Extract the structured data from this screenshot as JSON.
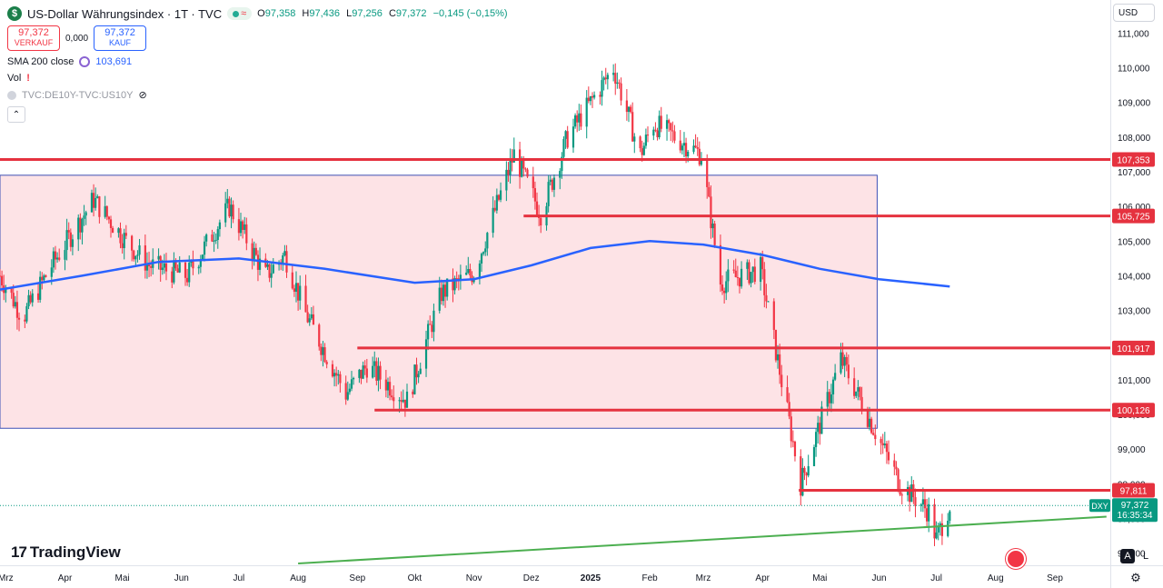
{
  "header": {
    "symbol_badge": "$",
    "title": "US-Dollar Währungsindex · 1T · TVC",
    "status_wave": "≈",
    "ohlc": {
      "o_label": "O",
      "o": "97,358",
      "h_label": "H",
      "h": "97,436",
      "l_label": "L",
      "l": "97,256",
      "c_label": "C",
      "c": "97,372",
      "change": "−0,145 (−0,15%)"
    },
    "sell": {
      "price": "97,372",
      "label": "VERKAUF"
    },
    "spread": "0,000",
    "buy": {
      "price": "97,372",
      "label": "KAUF"
    },
    "indicators": {
      "sma_label": "SMA 200 close",
      "sma_value": "103,691",
      "vol_label": "Vol",
      "vol_warning": "!",
      "compare_label": "TVC:DE10Y-TVC:US10Y"
    }
  },
  "currency": "USD",
  "branding": {
    "mark": "17",
    "name": "TradingView"
  },
  "bottom_buttons": {
    "auto": "A",
    "log": "L"
  },
  "colors": {
    "up": "#089981",
    "down": "#f23645",
    "sma": "#2962ff",
    "level": "#e5323f",
    "range_fill": "#fde3e6",
    "range_border": "#3f51b5",
    "trend": "#4caf50"
  },
  "icons": {
    "settings": "gear-icon",
    "hidden": "eye-slash-icon",
    "refresh": "cycle-icon",
    "flag": "us-flag-icon"
  },
  "chart_data": {
    "type": "candlestick",
    "symbol": "DXY",
    "y_axis_ticks": [
      "96,000",
      "97,000",
      "98,000",
      "99,000",
      "100,000",
      "101,000",
      "102,000",
      "103,000",
      "104,000",
      "105,000",
      "106,000",
      "107,000",
      "108,000",
      "109,000",
      "110,000",
      "111,000"
    ],
    "ylim": [
      95.7,
      111.3
    ],
    "x_axis_labels": [
      "Mrz",
      "Apr",
      "Mai",
      "Jun",
      "Jul",
      "Aug",
      "Sep",
      "Okt",
      "Nov",
      "Dez",
      "2025",
      "Feb",
      "Mrz",
      "Apr",
      "Mai",
      "Jun",
      "Jul",
      "Aug",
      "Sep"
    ],
    "xlim": [
      "2024-02-27",
      "2025-09-30"
    ],
    "grid": false,
    "last_price": {
      "label": "DXY",
      "value": "97,372",
      "countdown": "16:35:34"
    },
    "price_path": [
      [
        "2024-02-27",
        104.0
      ],
      [
        "2024-03-10",
        102.8
      ],
      [
        "2024-03-25",
        104.3
      ],
      [
        "2024-04-16",
        106.2
      ],
      [
        "2024-05-03",
        105.0
      ],
      [
        "2024-05-15",
        104.3
      ],
      [
        "2024-06-04",
        104.0
      ],
      [
        "2024-06-26",
        106.0
      ],
      [
        "2024-07-15",
        104.0
      ],
      [
        "2024-07-25",
        104.6
      ],
      [
        "2024-08-05",
        102.9
      ],
      [
        "2024-08-26",
        100.6
      ],
      [
        "2024-09-06",
        101.4
      ],
      [
        "2024-09-27",
        100.4
      ],
      [
        "2024-10-15",
        103.5
      ],
      [
        "2024-11-01",
        104.1
      ],
      [
        "2024-11-22",
        107.5
      ],
      [
        "2024-12-06",
        105.8
      ],
      [
        "2024-12-20",
        108.0
      ],
      [
        "2025-01-13",
        110.0
      ],
      [
        "2025-01-27",
        107.5
      ],
      [
        "2025-02-03",
        108.4
      ],
      [
        "2025-02-28",
        107.5
      ],
      [
        "2025-03-10",
        103.8
      ],
      [
        "2025-03-31",
        104.2
      ],
      [
        "2025-04-21",
        98.0
      ],
      [
        "2025-05-12",
        101.6
      ],
      [
        "2025-06-12",
        98.0
      ],
      [
        "2025-06-27",
        97.2
      ],
      [
        "2025-07-01",
        96.4
      ],
      [
        "2025-07-08",
        97.4
      ]
    ],
    "sma_200": [
      [
        "2024-02-27",
        103.6
      ],
      [
        "2024-04-10",
        104.0
      ],
      [
        "2024-05-20",
        104.4
      ],
      [
        "2024-07-01",
        104.5
      ],
      [
        "2024-08-15",
        104.2
      ],
      [
        "2024-10-01",
        103.8
      ],
      [
        "2024-11-01",
        103.9
      ],
      [
        "2024-12-01",
        104.3
      ],
      [
        "2025-01-01",
        104.8
      ],
      [
        "2025-02-01",
        105.0
      ],
      [
        "2025-03-01",
        104.9
      ],
      [
        "2025-04-01",
        104.6
      ],
      [
        "2025-05-01",
        104.2
      ],
      [
        "2025-06-01",
        103.9
      ],
      [
        "2025-07-08",
        103.691
      ]
    ],
    "horizontal_levels": [
      {
        "value": 107.353,
        "label": "107,353",
        "from": "2024-02-27"
      },
      {
        "value": 105.725,
        "label": "105,725",
        "from": "2024-11-27"
      },
      {
        "value": 101.917,
        "label": "101,917",
        "from": "2024-09-01"
      },
      {
        "value": 100.126,
        "label": "100,126",
        "from": "2024-09-10"
      },
      {
        "value": 97.811,
        "label": "97,811",
        "from": "2025-04-20"
      }
    ],
    "range_box": {
      "from": "2024-02-27",
      "to": "2025-05-31",
      "top": 106.9,
      "bottom": 99.6
    },
    "trend_line": {
      "from": [
        "2024-08-01",
        95.7
      ],
      "to": [
        "2025-09-28",
        97.05
      ]
    }
  }
}
